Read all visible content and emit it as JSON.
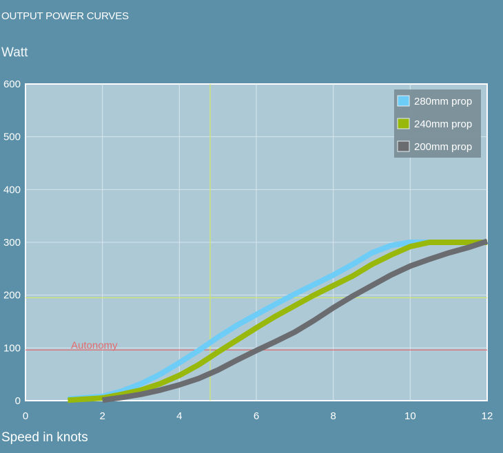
{
  "header": {
    "title": "OUTPUT POWER CURVES",
    "unit": "Watt"
  },
  "chart_data": {
    "type": "line",
    "xlabel": "Speed in knots",
    "ylabel": "Watt",
    "xlim": [
      0,
      12
    ],
    "ylim": [
      0,
      600
    ],
    "xticks": [
      0,
      2,
      4,
      6,
      8,
      10,
      12
    ],
    "yticks": [
      0,
      100,
      200,
      300,
      400,
      500,
      600
    ],
    "grid": true,
    "legend_position": "top-right",
    "series": [
      {
        "name": "280mm prop",
        "color": "#6dcdf7",
        "x": [
          1.1,
          2.0,
          2.5,
          3.0,
          3.5,
          4.0,
          4.5,
          5.0,
          5.5,
          6.0,
          6.5,
          7.0,
          7.5,
          8.0,
          8.5,
          9.0,
          9.5,
          10.0,
          10.5,
          11.0,
          12.0
        ],
        "y": [
          3,
          8,
          18,
          32,
          50,
          72,
          95,
          120,
          143,
          163,
          183,
          202,
          220,
          238,
          258,
          280,
          294,
          300,
          300,
          300,
          300
        ]
      },
      {
        "name": "240mm prop",
        "color": "#98b90c",
        "x": [
          1.1,
          2.0,
          2.5,
          3.0,
          3.5,
          4.0,
          4.5,
          5.0,
          5.5,
          6.0,
          6.5,
          7.0,
          7.5,
          8.0,
          8.5,
          9.0,
          9.5,
          10.0,
          10.5,
          11.0,
          12.0
        ],
        "y": [
          1,
          5,
          12,
          20,
          32,
          48,
          68,
          92,
          115,
          138,
          160,
          180,
          200,
          218,
          236,
          258,
          276,
          292,
          300,
          300,
          300
        ]
      },
      {
        "name": "200mm prop",
        "color": "#6a6c70",
        "x": [
          2.0,
          2.5,
          3.0,
          3.5,
          4.0,
          4.5,
          5.0,
          5.5,
          6.0,
          6.5,
          7.0,
          7.5,
          8.0,
          8.5,
          9.0,
          9.5,
          10.0,
          10.5,
          11.0,
          11.5,
          12.0
        ],
        "y": [
          1,
          6,
          12,
          20,
          30,
          42,
          58,
          77,
          95,
          112,
          130,
          152,
          176,
          198,
          218,
          238,
          255,
          268,
          280,
          290,
          302
        ]
      }
    ],
    "reference_lines": {
      "autonomy": {
        "label": "Autonomy",
        "axis": "y",
        "value": 96,
        "color": "#e26b6b"
      },
      "crosshair_y": {
        "axis": "y",
        "value": 195,
        "color": "#d2e86a"
      },
      "crosshair_x": {
        "axis": "x",
        "value": 4.8,
        "color": "#d2e86a"
      }
    }
  }
}
